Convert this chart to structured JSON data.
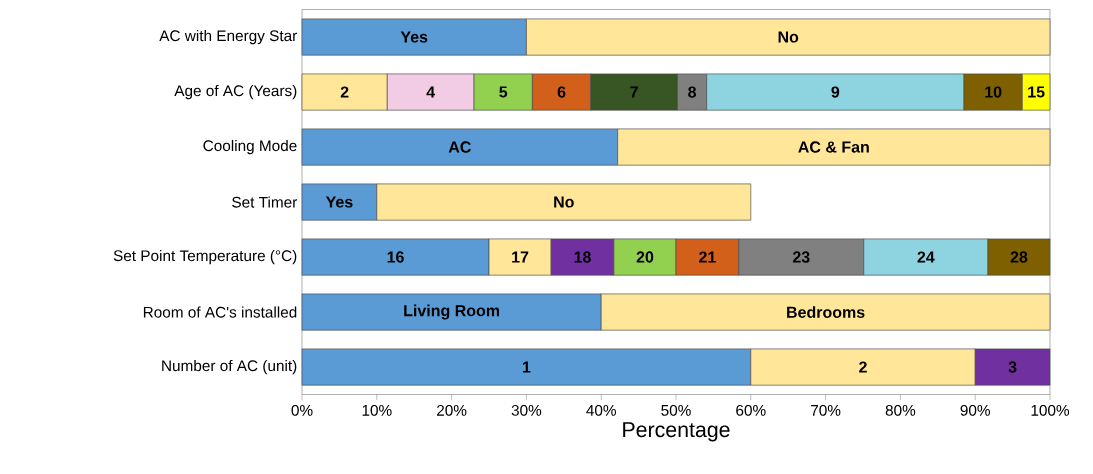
{
  "chart_data": {
    "type": "bar",
    "orientation": "horizontal",
    "stacked": true,
    "legend": false,
    "xlabel": "Percentage",
    "categories": [
      "AC with Energy Star",
      "Age of AC (Years)",
      "Cooling Mode",
      "Set Timer",
      "Set Point Temperature (°C)",
      "Room of AC's installed",
      "Number of AC (unit)"
    ],
    "xlim": [
      0,
      100
    ],
    "xticks": [
      {
        "value": 0,
        "label": "0%"
      },
      {
        "value": 10,
        "label": "10%"
      },
      {
        "value": 20,
        "label": "20%"
      },
      {
        "value": 30,
        "label": "30%"
      },
      {
        "value": 40,
        "label": "40%"
      },
      {
        "value": 50,
        "label": "50%"
      },
      {
        "value": 60,
        "label": "60%"
      },
      {
        "value": 70,
        "label": "70%"
      },
      {
        "value": 80,
        "label": "80%"
      },
      {
        "value": 90,
        "label": "90%"
      },
      {
        "value": 100,
        "label": "100%"
      }
    ],
    "series": [
      {
        "name": "Yes",
        "color": "#5b9bd5",
        "values": [
          30,
          null,
          null,
          null,
          null,
          null,
          null
        ]
      },
      {
        "name": "No",
        "color": "#ffe699",
        "values": [
          70,
          null,
          null,
          null,
          null,
          null,
          null
        ]
      },
      {
        "name": "2",
        "color": "#ffe699",
        "values": [
          null,
          11.4,
          null,
          null,
          null,
          null,
          null
        ]
      },
      {
        "name": "4",
        "color": "#f2cce4",
        "values": [
          null,
          11.6,
          null,
          null,
          null,
          null,
          null
        ]
      },
      {
        "name": "5",
        "color": "#92d050",
        "values": [
          null,
          7.8,
          null,
          null,
          null,
          null,
          null
        ]
      },
      {
        "name": "6",
        "color": "#d2601a",
        "values": [
          null,
          7.8,
          null,
          null,
          null,
          null,
          null
        ]
      },
      {
        "name": "7",
        "color": "#375623",
        "values": [
          null,
          11.6,
          null,
          null,
          null,
          null,
          null
        ]
      },
      {
        "name": "8",
        "color": "#808080",
        "values": [
          null,
          3.9,
          null,
          null,
          null,
          null,
          null
        ]
      },
      {
        "name": "9",
        "color": "#8dd3e0",
        "values": [
          null,
          34.4,
          null,
          null,
          null,
          null,
          null
        ]
      },
      {
        "name": "10",
        "color": "#7f6000",
        "values": [
          null,
          7.8,
          null,
          null,
          null,
          null,
          null
        ]
      },
      {
        "name": "15",
        "color": "#ffff00",
        "values": [
          null,
          3.7,
          null,
          null,
          null,
          null,
          null
        ]
      },
      {
        "name": "AC",
        "color": "#5b9bd5",
        "values": [
          null,
          null,
          42.2,
          null,
          null,
          null,
          null
        ]
      },
      {
        "name": "AC & Fan",
        "color": "#ffe699",
        "values": [
          null,
          null,
          57.8,
          null,
          null,
          null,
          null
        ]
      },
      {
        "name": "Yes",
        "color": "#5b9bd5",
        "values": [
          null,
          null,
          null,
          10,
          null,
          null,
          null
        ]
      },
      {
        "name": "No",
        "color": "#ffe699",
        "values": [
          null,
          null,
          null,
          50,
          null,
          null,
          null
        ]
      },
      {
        "name": "16",
        "color": "#5b9bd5",
        "values": [
          null,
          null,
          null,
          null,
          25,
          null,
          null
        ]
      },
      {
        "name": "17",
        "color": "#ffe699",
        "values": [
          null,
          null,
          null,
          null,
          8.3,
          null,
          null
        ]
      },
      {
        "name": "18",
        "color": "#7030a0",
        "values": [
          null,
          null,
          null,
          null,
          8.4,
          null,
          null
        ]
      },
      {
        "name": "20",
        "color": "#92d050",
        "values": [
          null,
          null,
          null,
          null,
          8.3,
          null,
          null
        ]
      },
      {
        "name": "21",
        "color": "#d2601a",
        "values": [
          null,
          null,
          null,
          null,
          8.4,
          null,
          null
        ]
      },
      {
        "name": "23",
        "color": "#808080",
        "values": [
          null,
          null,
          null,
          null,
          16.7,
          null,
          null
        ]
      },
      {
        "name": "24",
        "color": "#8dd3e0",
        "values": [
          null,
          null,
          null,
          null,
          16.6,
          null,
          null
        ]
      },
      {
        "name": "28",
        "color": "#7f6000",
        "values": [
          null,
          null,
          null,
          null,
          8.3,
          null,
          null
        ]
      },
      {
        "name": "Living Room",
        "color": "#5b9bd5",
        "values": [
          null,
          null,
          null,
          null,
          null,
          40,
          null
        ]
      },
      {
        "name": "Bedrooms",
        "color": "#ffe699",
        "values": [
          null,
          null,
          null,
          null,
          null,
          60,
          null
        ]
      },
      {
        "name": "1",
        "color": "#5b9bd5",
        "values": [
          null,
          null,
          null,
          null,
          null,
          null,
          60
        ]
      },
      {
        "name": "2",
        "color": "#ffe699",
        "values": [
          null,
          null,
          null,
          null,
          null,
          null,
          30
        ]
      },
      {
        "name": "3",
        "color": "#7030a0",
        "values": [
          null,
          null,
          null,
          null,
          null,
          null,
          10
        ]
      }
    ]
  }
}
